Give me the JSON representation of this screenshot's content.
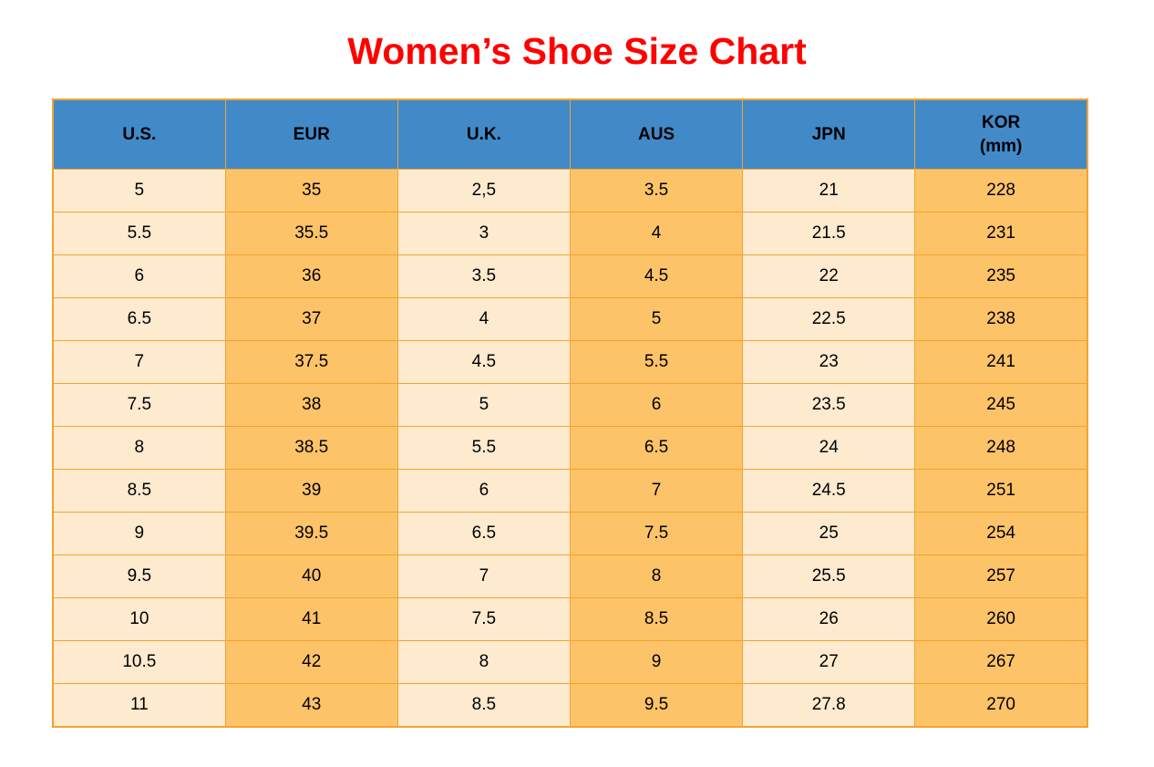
{
  "title": {
    "text": "Women’s Shoe Size Chart"
  },
  "colors": {
    "title_color": "#ff0000",
    "header_bg": "#4289c8",
    "col_light": "#fdeacf",
    "col_dark": "#fdc368",
    "grid": "#f0a431",
    "cell_text": "#000000"
  },
  "chart_data": {
    "type": "table",
    "title": "Women’s Shoe Size Chart",
    "columns": [
      {
        "label": "U.S."
      },
      {
        "label": "EUR"
      },
      {
        "label": "U.K."
      },
      {
        "label": "AUS"
      },
      {
        "label": "JPN"
      },
      {
        "label": "KOR",
        "sublabel": "(mm)"
      }
    ],
    "rows": [
      [
        "5",
        "35",
        "2,5",
        "3.5",
        "21",
        "228"
      ],
      [
        "5.5",
        "35.5",
        "3",
        "4",
        "21.5",
        "231"
      ],
      [
        "6",
        "36",
        "3.5",
        "4.5",
        "22",
        "235"
      ],
      [
        "6.5",
        "37",
        "4",
        "5",
        "22.5",
        "238"
      ],
      [
        "7",
        "37.5",
        "4.5",
        "5.5",
        "23",
        "241"
      ],
      [
        "7.5",
        "38",
        "5",
        "6",
        "23.5",
        "245"
      ],
      [
        "8",
        "38.5",
        "5.5",
        "6.5",
        "24",
        "248"
      ],
      [
        "8.5",
        "39",
        "6",
        "7",
        "24.5",
        "251"
      ],
      [
        "9",
        "39.5",
        "6.5",
        "7.5",
        "25",
        "254"
      ],
      [
        "9.5",
        "40",
        "7",
        "8",
        "25.5",
        "257"
      ],
      [
        "10",
        "41",
        "7.5",
        "8.5",
        "26",
        "260"
      ],
      [
        "10.5",
        "42",
        "8",
        "9",
        "27",
        "267"
      ],
      [
        "11",
        "43",
        "8.5",
        "9.5",
        "27.8",
        "270"
      ]
    ],
    "layout": {
      "column_striping": [
        "light",
        "dark",
        "light",
        "dark",
        "light",
        "dark"
      ],
      "grid": true,
      "header_position": "top"
    }
  }
}
